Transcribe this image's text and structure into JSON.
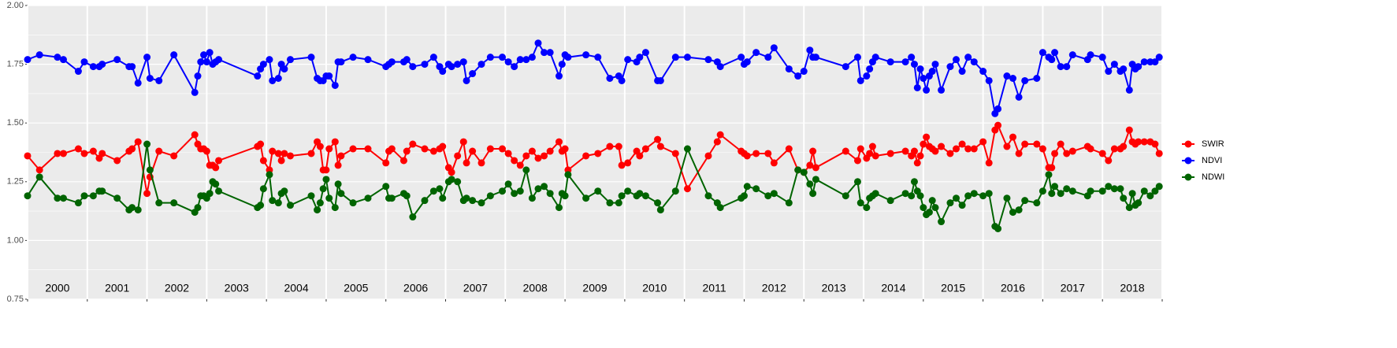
{
  "chart_data": {
    "type": "line",
    "x": [
      2000.0,
      2000.2,
      2000.5,
      2000.6,
      2000.85,
      2000.95,
      2001.1,
      2001.2,
      2001.25,
      2001.5,
      2001.7,
      2001.75,
      2001.85,
      2002.0,
      2002.05,
      2002.2,
      2002.45,
      2002.8,
      2002.85,
      2002.9,
      2002.95,
      2003.0,
      2003.05,
      2003.1,
      2003.15,
      2003.2,
      2003.85,
      2003.9,
      2003.95,
      2004.05,
      2004.1,
      2004.2,
      2004.25,
      2004.3,
      2004.4,
      2004.75,
      2004.85,
      2004.9,
      2004.95,
      2005.0,
      2005.05,
      2005.15,
      2005.2,
      2005.25,
      2005.45,
      2005.7,
      2006.0,
      2006.05,
      2006.1,
      2006.3,
      2006.35,
      2006.45,
      2006.65,
      2006.8,
      2006.9,
      2006.95,
      2007.05,
      2007.1,
      2007.2,
      2007.3,
      2007.35,
      2007.45,
      2007.6,
      2007.75,
      2007.95,
      2008.05,
      2008.15,
      2008.25,
      2008.35,
      2008.45,
      2008.55,
      2008.65,
      2008.75,
      2008.9,
      2008.95,
      2009.0,
      2009.05,
      2009.35,
      2009.55,
      2009.75,
      2009.9,
      2009.95,
      2010.05,
      2010.2,
      2010.25,
      2010.35,
      2010.55,
      2010.6,
      2010.85,
      2011.05,
      2011.4,
      2011.55,
      2011.6,
      2011.95,
      2012.0,
      2012.05,
      2012.2,
      2012.4,
      2012.5,
      2012.75,
      2012.9,
      2013.0,
      2013.1,
      2013.15,
      2013.2,
      2013.7,
      2013.9,
      2013.95,
      2014.05,
      2014.1,
      2014.15,
      2014.2,
      2014.45,
      2014.7,
      2014.8,
      2014.85,
      2014.9,
      2014.95,
      2015.0,
      2015.05,
      2015.1,
      2015.15,
      2015.2,
      2015.3,
      2015.45,
      2015.55,
      2015.65,
      2015.75,
      2015.85,
      2016.0,
      2016.1,
      2016.2,
      2016.25,
      2016.4,
      2016.5,
      2016.6,
      2016.7,
      2016.9,
      2017.0,
      2017.1,
      2017.15,
      2017.2,
      2017.3,
      2017.4,
      2017.5,
      2017.75,
      2017.8,
      2018.0,
      2018.1,
      2018.2,
      2018.3,
      2018.35,
      2018.45,
      2018.5,
      2018.55,
      2018.6,
      2018.7,
      2018.8,
      2018.88,
      2018.95
    ],
    "series": [
      {
        "name": "SWIR",
        "color": "#ff0000",
        "values": [
          1.36,
          1.3,
          1.37,
          1.37,
          1.39,
          1.37,
          1.38,
          1.35,
          1.37,
          1.34,
          1.38,
          1.39,
          1.42,
          1.2,
          1.27,
          1.38,
          1.36,
          1.45,
          1.41,
          1.39,
          1.39,
          1.38,
          1.32,
          1.32,
          1.31,
          1.34,
          1.4,
          1.41,
          1.34,
          1.3,
          1.38,
          1.37,
          1.34,
          1.37,
          1.36,
          1.37,
          1.42,
          1.4,
          1.3,
          1.3,
          1.39,
          1.42,
          1.32,
          1.36,
          1.39,
          1.39,
          1.33,
          1.38,
          1.39,
          1.34,
          1.38,
          1.41,
          1.39,
          1.38,
          1.39,
          1.4,
          1.31,
          1.29,
          1.36,
          1.42,
          1.33,
          1.38,
          1.33,
          1.39,
          1.39,
          1.37,
          1.34,
          1.32,
          1.36,
          1.38,
          1.35,
          1.36,
          1.38,
          1.42,
          1.38,
          1.39,
          1.3,
          1.36,
          1.37,
          1.4,
          1.4,
          1.32,
          1.33,
          1.38,
          1.36,
          1.39,
          1.43,
          1.4,
          1.37,
          1.22,
          1.36,
          1.42,
          1.45,
          1.38,
          1.37,
          1.36,
          1.37,
          1.37,
          1.33,
          1.39,
          1.3,
          1.29,
          1.32,
          1.38,
          1.31,
          1.38,
          1.34,
          1.39,
          1.35,
          1.37,
          1.4,
          1.36,
          1.37,
          1.38,
          1.36,
          1.38,
          1.33,
          1.36,
          1.41,
          1.44,
          1.4,
          1.39,
          1.38,
          1.4,
          1.37,
          1.39,
          1.41,
          1.39,
          1.39,
          1.42,
          1.33,
          1.47,
          1.49,
          1.4,
          1.44,
          1.37,
          1.41,
          1.41,
          1.39,
          1.31,
          1.31,
          1.37,
          1.41,
          1.37,
          1.38,
          1.4,
          1.39,
          1.37,
          1.34,
          1.39,
          1.39,
          1.4,
          1.47,
          1.42,
          1.41,
          1.42,
          1.42,
          1.42,
          1.41,
          1.37
        ]
      },
      {
        "name": "NDVI",
        "color": "#0000ff",
        "values": [
          1.77,
          1.79,
          1.78,
          1.77,
          1.72,
          1.76,
          1.74,
          1.74,
          1.75,
          1.77,
          1.74,
          1.74,
          1.67,
          1.78,
          1.69,
          1.68,
          1.79,
          1.63,
          1.7,
          1.76,
          1.79,
          1.76,
          1.8,
          1.75,
          1.76,
          1.77,
          1.7,
          1.73,
          1.75,
          1.77,
          1.68,
          1.69,
          1.75,
          1.73,
          1.77,
          1.78,
          1.69,
          1.68,
          1.68,
          1.7,
          1.7,
          1.66,
          1.76,
          1.76,
          1.78,
          1.77,
          1.74,
          1.75,
          1.76,
          1.76,
          1.77,
          1.74,
          1.75,
          1.78,
          1.74,
          1.72,
          1.75,
          1.74,
          1.75,
          1.76,
          1.68,
          1.71,
          1.75,
          1.78,
          1.78,
          1.76,
          1.74,
          1.77,
          1.77,
          1.78,
          1.84,
          1.8,
          1.8,
          1.7,
          1.75,
          1.79,
          1.78,
          1.79,
          1.78,
          1.69,
          1.7,
          1.68,
          1.77,
          1.76,
          1.78,
          1.8,
          1.68,
          1.68,
          1.78,
          1.78,
          1.77,
          1.76,
          1.74,
          1.78,
          1.75,
          1.76,
          1.8,
          1.78,
          1.82,
          1.73,
          1.7,
          1.72,
          1.81,
          1.78,
          1.78,
          1.74,
          1.78,
          1.68,
          1.7,
          1.73,
          1.76,
          1.78,
          1.76,
          1.76,
          1.78,
          1.75,
          1.65,
          1.73,
          1.69,
          1.64,
          1.7,
          1.72,
          1.75,
          1.64,
          1.74,
          1.77,
          1.72,
          1.78,
          1.76,
          1.72,
          1.68,
          1.54,
          1.56,
          1.7,
          1.69,
          1.61,
          1.68,
          1.69,
          1.8,
          1.78,
          1.77,
          1.8,
          1.74,
          1.74,
          1.79,
          1.77,
          1.79,
          1.78,
          1.72,
          1.75,
          1.72,
          1.73,
          1.64,
          1.75,
          1.73,
          1.74,
          1.76,
          1.76,
          1.76,
          1.78
        ]
      },
      {
        "name": "NDWI",
        "color": "#006400",
        "values": [
          1.19,
          1.27,
          1.18,
          1.18,
          1.16,
          1.19,
          1.19,
          1.21,
          1.21,
          1.18,
          1.13,
          1.14,
          1.13,
          1.41,
          1.3,
          1.16,
          1.16,
          1.12,
          1.14,
          1.19,
          1.19,
          1.18,
          1.2,
          1.25,
          1.24,
          1.21,
          1.14,
          1.15,
          1.22,
          1.28,
          1.17,
          1.16,
          1.2,
          1.21,
          1.15,
          1.19,
          1.13,
          1.16,
          1.22,
          1.26,
          1.18,
          1.14,
          1.24,
          1.2,
          1.16,
          1.18,
          1.23,
          1.18,
          1.18,
          1.2,
          1.19,
          1.1,
          1.17,
          1.21,
          1.22,
          1.18,
          1.25,
          1.26,
          1.25,
          1.17,
          1.18,
          1.17,
          1.16,
          1.19,
          1.21,
          1.24,
          1.2,
          1.21,
          1.3,
          1.18,
          1.22,
          1.23,
          1.2,
          1.14,
          1.2,
          1.19,
          1.28,
          1.18,
          1.21,
          1.16,
          1.16,
          1.19,
          1.21,
          1.19,
          1.2,
          1.19,
          1.16,
          1.13,
          1.21,
          1.39,
          1.19,
          1.16,
          1.14,
          1.18,
          1.19,
          1.23,
          1.22,
          1.19,
          1.2,
          1.16,
          1.3,
          1.29,
          1.24,
          1.2,
          1.26,
          1.19,
          1.25,
          1.16,
          1.14,
          1.18,
          1.19,
          1.2,
          1.17,
          1.2,
          1.19,
          1.25,
          1.21,
          1.19,
          1.14,
          1.11,
          1.12,
          1.17,
          1.14,
          1.08,
          1.16,
          1.18,
          1.15,
          1.19,
          1.2,
          1.19,
          1.2,
          1.06,
          1.05,
          1.18,
          1.12,
          1.13,
          1.17,
          1.16,
          1.21,
          1.28,
          1.2,
          1.23,
          1.2,
          1.22,
          1.21,
          1.19,
          1.21,
          1.21,
          1.23,
          1.22,
          1.22,
          1.18,
          1.14,
          1.2,
          1.15,
          1.16,
          1.21,
          1.19,
          1.21,
          1.23
        ]
      }
    ],
    "xlim": [
      2000,
      2019
    ],
    "xticks": [
      2000,
      2001,
      2002,
      2003,
      2004,
      2005,
      2006,
      2007,
      2008,
      2009,
      2010,
      2011,
      2012,
      2013,
      2014,
      2015,
      2016,
      2017,
      2018,
      2019
    ],
    "year_labels": [
      "2000",
      "2001",
      "2002",
      "2003",
      "2004",
      "2005",
      "2006",
      "2007",
      "2008",
      "2009",
      "2010",
      "2011",
      "2012",
      "2013",
      "2014",
      "2015",
      "2016",
      "2017",
      "2018"
    ],
    "ylim": [
      0.75,
      2.0
    ],
    "yticks": [
      0.75,
      {
        "value": 1.0,
        "label": "1.00"
      },
      1.25,
      {
        "value": 1.5,
        "label": "1.50"
      },
      1.75,
      {
        "value": 2.0,
        "label": "2.00"
      }
    ],
    "y_minor_ticks": [
      0.875,
      1.125,
      1.375,
      1.625,
      1.875
    ],
    "grid": true,
    "legend": "right"
  }
}
